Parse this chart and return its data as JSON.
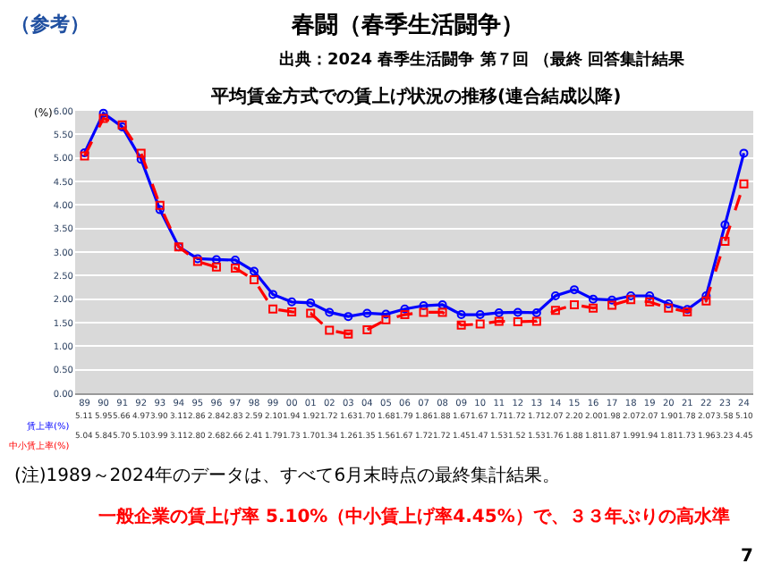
{
  "chart_data": {
    "type": "line",
    "title": "平均賃金方式での賃上げ状況の推移(連合結成以降)",
    "subtitle": "出典：2024 春季生活闘争 第７回 （最終 回答集計結果",
    "ylabel": "(%)",
    "annotations": [
      "（参考）",
      "春闘（春季生活闘争）",
      "(注)1989～2024年のデータは、すべて6月末時点の最終集計結果。",
      "一般企業の賃上げ率 5.10%（中小賃上げ率4.45%）で、３３年ぶりの高水準",
      "7"
    ],
    "categories": [
      "89",
      "90",
      "91",
      "92",
      "93",
      "94",
      "95",
      "96",
      "97",
      "98",
      "99",
      "00",
      "01",
      "02",
      "03",
      "04",
      "05",
      "06",
      "07",
      "08",
      "09",
      "10",
      "11",
      "12",
      "13",
      "14",
      "15",
      "16",
      "17",
      "18",
      "19",
      "20",
      "21",
      "22",
      "23",
      "24"
    ],
    "series": [
      {
        "name": "賃上率(%)",
        "color": "#0000ff",
        "marker": "circle",
        "line_style": "solid",
        "values": [
          5.11,
          5.95,
          5.66,
          4.97,
          3.9,
          3.11,
          2.86,
          2.84,
          2.83,
          2.59,
          2.1,
          1.94,
          1.92,
          1.72,
          1.63,
          1.7,
          1.68,
          1.79,
          1.86,
          1.88,
          1.67,
          1.67,
          1.71,
          1.72,
          1.71,
          2.07,
          2.2,
          2.0,
          1.98,
          2.07,
          2.07,
          1.9,
          1.78,
          2.07,
          3.58,
          5.1
        ],
        "value_labels": [
          "5.11",
          "5.95",
          "5.66",
          "4.97",
          "3.90",
          "3.11",
          "2.86",
          "2.84",
          "2.83",
          "2.59",
          "2.10",
          "1.94",
          "1.92",
          "1.72",
          "1.63",
          "1.70",
          "1.68",
          "1.79",
          "1.86",
          "1.88",
          "1.67",
          "1.67",
          "1.71",
          "1.72",
          "1.71",
          "2.07",
          "2.20",
          "2.00",
          "1.98",
          "2.07",
          "2.07",
          "1.90",
          "1.78",
          "2.07",
          "3.58",
          "5.10"
        ]
      },
      {
        "name": "中小賃上率(%)",
        "color": "#ff0000",
        "marker": "square",
        "line_style": "dashed",
        "values": [
          5.04,
          5.84,
          5.7,
          5.1,
          3.99,
          3.11,
          2.8,
          2.68,
          2.66,
          2.41,
          1.79,
          1.73,
          1.7,
          1.34,
          1.26,
          1.35,
          1.56,
          1.67,
          1.72,
          1.72,
          1.45,
          1.47,
          1.53,
          1.52,
          1.53,
          1.76,
          1.88,
          1.81,
          1.87,
          1.99,
          1.94,
          1.81,
          1.73,
          1.96,
          3.23,
          4.45
        ],
        "value_labels": [
          "5.04",
          "5.84",
          "5.70",
          "5.10",
          "3.99",
          "3.11",
          "2.80",
          "2.68",
          "2.66",
          "2.41",
          "1.79",
          "1.73",
          "1.70",
          "1.34",
          "1.26",
          "1.35",
          "1.56",
          "1.67",
          "1.72",
          "1.72",
          "1.45",
          "1.47",
          "1.53",
          "1.52",
          "1.53",
          "1.76",
          "1.88",
          "1.81",
          "1.87",
          "1.99",
          "1.94",
          "1.81",
          "1.73",
          "1.96",
          "3.23",
          "4.45"
        ]
      }
    ],
    "ylim": [
      0,
      6
    ],
    "yticks": [
      {
        "value": 0,
        "label": "0.00"
      },
      {
        "value": 0.5,
        "label": "0.50"
      },
      {
        "value": 1,
        "label": "1.00"
      },
      {
        "value": 1.5,
        "label": "1.50"
      },
      {
        "value": 2,
        "label": "2.00"
      },
      {
        "value": 2.5,
        "label": "2.50"
      },
      {
        "value": 3,
        "label": "3.00"
      },
      {
        "value": 3.5,
        "label": "3.50"
      },
      {
        "value": 4,
        "label": "4.00"
      },
      {
        "value": 4.5,
        "label": "4.50"
      },
      {
        "value": 5,
        "label": "5.00"
      },
      {
        "value": 5.5,
        "label": "5.50"
      },
      {
        "value": 6,
        "label": "6.00"
      }
    ],
    "grid": "y"
  }
}
